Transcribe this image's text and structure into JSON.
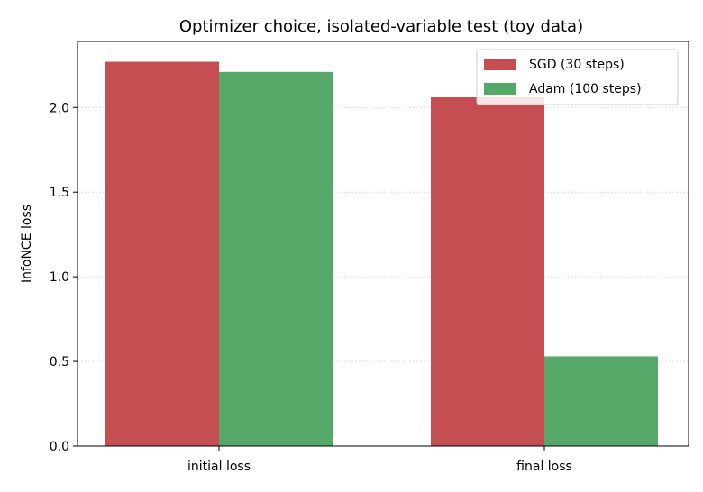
{
  "chart_data": {
    "type": "bar",
    "title": "Optimizer choice, isolated-variable test (toy data)",
    "xlabel": "",
    "ylabel": "InfoNCE loss",
    "categories": [
      "initial loss",
      "final loss"
    ],
    "series": [
      {
        "name": "SGD (30 steps)",
        "values": [
          2.27,
          2.06
        ],
        "color": "#c44e52"
      },
      {
        "name": "Adam (100 steps)",
        "values": [
          2.21,
          0.53
        ],
        "color": "#55a868"
      }
    ],
    "ylim": [
      0,
      2.39
    ],
    "yticks": [
      "0.0",
      "0.5",
      "1.0",
      "1.5",
      "2.0"
    ],
    "grid": "y-dotted",
    "legend_position": "top-right"
  }
}
